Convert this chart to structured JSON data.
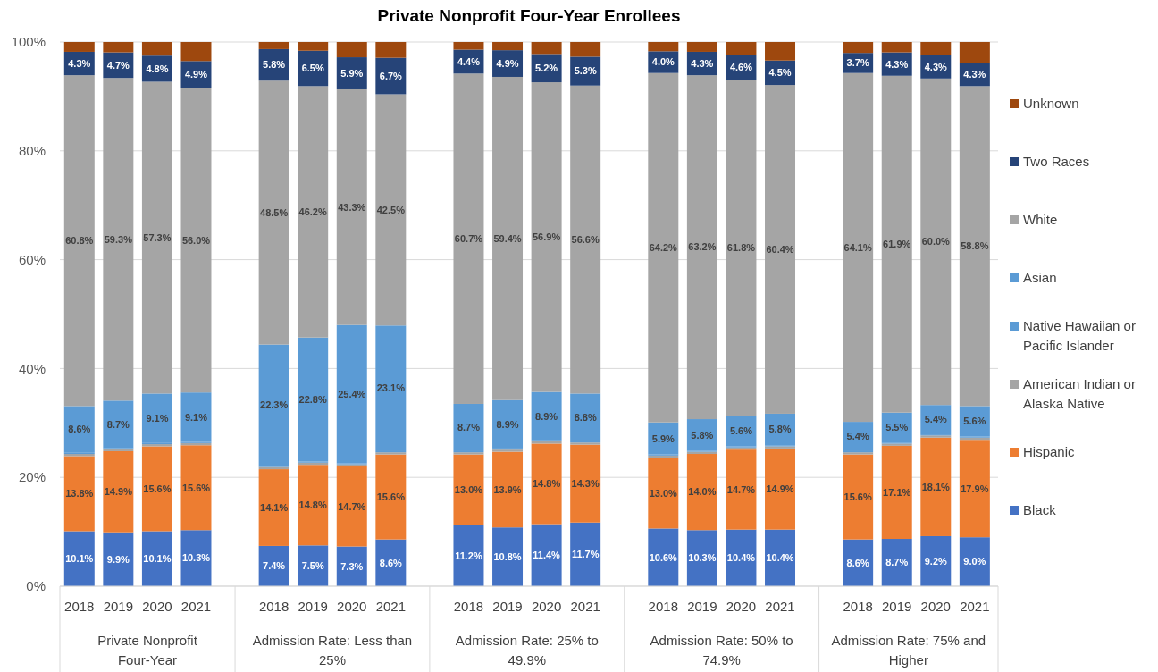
{
  "chart_data": {
    "type": "bar",
    "stacked": true,
    "title": "Private Nonprofit Four-Year Enrollees",
    "categories": [
      "2018",
      "2019",
      "2020",
      "2021",
      null,
      "2018",
      "2019",
      "2020",
      "2021",
      null,
      "2018",
      "2019",
      "2020",
      "2021",
      null,
      "2018",
      "2019",
      "2020",
      "2021",
      null,
      "2018",
      "2019",
      "2020",
      "2021"
    ],
    "annotations": [
      "Private Nonprofit Four-Year",
      "Admission Rate: Less than 25%",
      "Admission Rate: 25% to 49.9%",
      "Admission Rate: 50% to 74.9%",
      "Admission Rate: 75% and Higher"
    ],
    "ylim": [
      0,
      100
    ],
    "yticks": [
      {
        "value": 0,
        "label": "0%"
      },
      {
        "value": 20,
        "label": "20%"
      },
      {
        "value": 40,
        "label": "40%"
      },
      {
        "value": 60,
        "label": "60%"
      },
      {
        "value": 80,
        "label": "80%"
      },
      {
        "value": 100,
        "label": "100%"
      }
    ],
    "grid": "y",
    "legend": "right",
    "series": [
      {
        "name": "Black",
        "color": "#4472c4",
        "values": [
          10.1,
          9.9,
          10.1,
          10.3,
          null,
          7.4,
          7.5,
          7.3,
          8.6,
          null,
          11.2,
          10.8,
          11.4,
          11.7,
          null,
          10.6,
          10.3,
          10.4,
          10.4,
          null,
          8.6,
          8.7,
          9.2,
          9.0
        ],
        "value_labels": [
          "10.1%",
          "9.9%",
          "10.1%",
          "10.3%",
          null,
          "7.4%",
          "7.5%",
          "7.3%",
          "8.6%",
          null,
          "11.2%",
          "10.8%",
          "11.4%",
          "11.7%",
          null,
          "10.6%",
          "10.3%",
          "10.4%",
          "10.4%",
          null,
          "8.6%",
          "8.7%",
          "9.2%",
          "9.0%"
        ]
      },
      {
        "name": "Hispanic",
        "color": "#ed7d31",
        "values": [
          13.8,
          14.9,
          15.6,
          15.6,
          null,
          14.1,
          14.8,
          14.7,
          15.6,
          null,
          13.0,
          13.9,
          14.8,
          14.3,
          null,
          13.0,
          14.0,
          14.7,
          14.9,
          null,
          15.6,
          17.1,
          18.1,
          17.9
        ],
        "value_labels": [
          "13.8%",
          "14.9%",
          "15.6%",
          "15.6%",
          null,
          "14.1%",
          "14.8%",
          "14.7%",
          "15.6%",
          null,
          "13.0%",
          "13.9%",
          "14.8%",
          "14.3%",
          null,
          "13.0%",
          "14.0%",
          "14.7%",
          "14.9%",
          null,
          "15.6%",
          "17.1%",
          "18.1%",
          "17.9%"
        ]
      },
      {
        "name": "American Indian or Alaska Native",
        "color": "#a5a5a5",
        "values": [
          0.4,
          0.4,
          0.4,
          0.4,
          null,
          0.4,
          0.4,
          0.4,
          0.4,
          null,
          0.4,
          0.4,
          0.4,
          0.4,
          null,
          0.4,
          0.4,
          0.4,
          0.4,
          null,
          0.4,
          0.4,
          0.4,
          0.4
        ]
      },
      {
        "name": "Native Hawaiian or Pacific Islander",
        "color": "#5b9bd5",
        "values": [
          0.2,
          0.2,
          0.2,
          0.2,
          null,
          0.2,
          0.2,
          0.2,
          0.2,
          null,
          0.2,
          0.2,
          0.2,
          0.2,
          null,
          0.2,
          0.2,
          0.2,
          0.2,
          null,
          0.2,
          0.2,
          0.2,
          0.2
        ]
      },
      {
        "name": "Asian",
        "color": "#5b9bd5",
        "values": [
          8.6,
          8.7,
          9.1,
          9.1,
          null,
          22.3,
          22.8,
          25.4,
          23.1,
          null,
          8.7,
          8.9,
          8.9,
          8.8,
          null,
          5.9,
          5.8,
          5.6,
          5.8,
          null,
          5.4,
          5.5,
          5.4,
          5.6
        ],
        "value_labels": [
          "8.6%",
          "8.7%",
          "9.1%",
          "9.1%",
          null,
          "22.3%",
          "22.8%",
          "25.4%",
          "23.1%",
          null,
          "8.7%",
          "8.9%",
          "8.9%",
          "8.8%",
          null,
          "5.9%",
          "5.8%",
          "5.6%",
          "5.8%",
          null,
          "5.4%",
          "5.5%",
          "5.4%",
          "5.6%"
        ]
      },
      {
        "name": "White",
        "color": "#a5a5a5",
        "values": [
          60.8,
          59.3,
          57.3,
          56.0,
          null,
          48.5,
          46.2,
          43.3,
          42.5,
          null,
          60.7,
          59.4,
          56.9,
          56.6,
          null,
          64.2,
          63.2,
          61.8,
          60.4,
          null,
          64.1,
          61.9,
          60.0,
          58.8
        ],
        "value_labels": [
          "60.8%",
          "59.3%",
          "57.3%",
          "56.0%",
          null,
          "48.5%",
          "46.2%",
          "43.3%",
          "42.5%",
          null,
          "60.7%",
          "59.4%",
          "56.9%",
          "56.6%",
          null,
          "64.2%",
          "63.2%",
          "61.8%",
          "60.4%",
          null,
          "64.1%",
          "61.9%",
          "60.0%",
          "58.8%"
        ]
      },
      {
        "name": "Two Races",
        "color": "#264478",
        "values": [
          4.3,
          4.7,
          4.8,
          4.9,
          null,
          5.8,
          6.5,
          5.9,
          6.7,
          null,
          4.4,
          4.9,
          5.2,
          5.3,
          null,
          4.0,
          4.3,
          4.6,
          4.5,
          null,
          3.7,
          4.3,
          4.3,
          4.3
        ],
        "value_labels": [
          "4.3%",
          "4.7%",
          "4.8%",
          "4.9%",
          null,
          "5.8%",
          "6.5%",
          "5.9%",
          "6.7%",
          null,
          "4.4%",
          "4.9%",
          "5.2%",
          "5.3%",
          null,
          "4.0%",
          "4.3%",
          "4.6%",
          "4.5%",
          null,
          "3.7%",
          "4.3%",
          "4.3%",
          "4.3%"
        ]
      },
      {
        "name": "Unknown",
        "color": "#9e480e",
        "values": [
          1.8,
          1.9,
          2.5,
          3.5,
          null,
          1.3,
          1.6,
          2.8,
          2.9,
          null,
          1.4,
          1.5,
          2.2,
          2.7,
          null,
          1.7,
          1.8,
          2.3,
          3.4,
          null,
          2.0,
          1.9,
          2.4,
          3.8
        ]
      }
    ]
  }
}
